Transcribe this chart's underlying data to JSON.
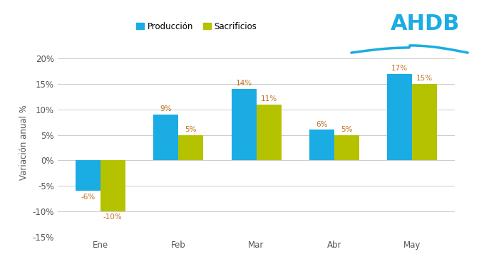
{
  "categories": [
    "Ene",
    "Feb",
    "Mar",
    "Abr",
    "May"
  ],
  "produccion": [
    -6,
    9,
    14,
    6,
    17
  ],
  "sacrificios": [
    -10,
    5,
    11,
    5,
    15
  ],
  "bar_color_prod": "#1aace3",
  "bar_color_sacr": "#b5c200",
  "label_color": "#c07020",
  "legend_prod": "Producción",
  "legend_sacr": "Sacrificios",
  "ylabel": "Variación anual %",
  "ylim": [
    -15,
    22
  ],
  "yticks": [
    -15,
    -10,
    -5,
    0,
    5,
    10,
    15,
    20
  ],
  "ytick_labels": [
    "-15%",
    "-10%",
    "-5%",
    "0%",
    "5%",
    "10%",
    "15%",
    "20%"
  ],
  "bar_width": 0.32,
  "background_color": "#ffffff",
  "grid_color": "#cccccc",
  "tick_color": "#555555",
  "label_fontsize": 7.5,
  "axis_label_fontsize": 8.5,
  "legend_fontsize": 8.5,
  "ahdb_color": "#1aace3",
  "ahdb_fontsize": 22
}
